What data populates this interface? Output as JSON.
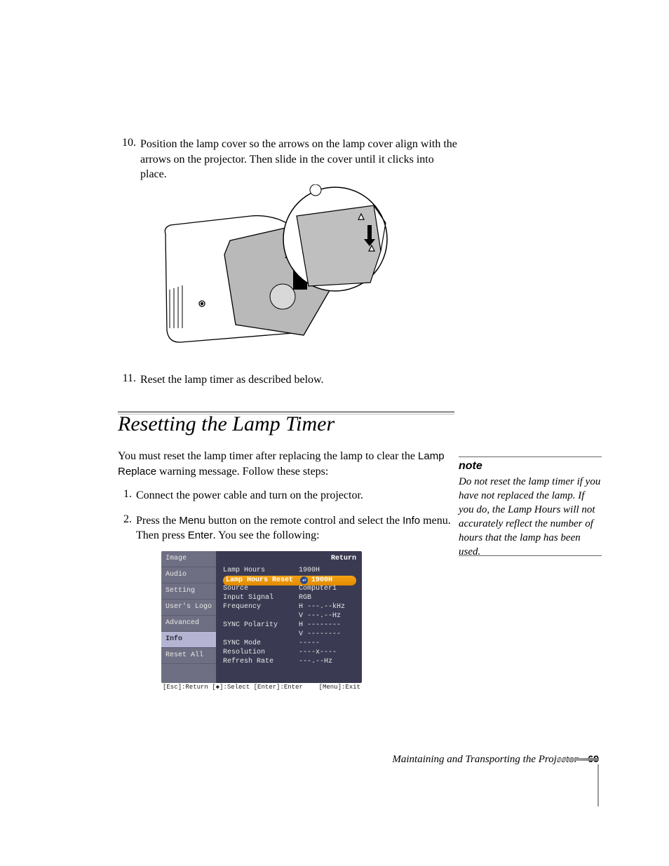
{
  "steps_first": [
    {
      "n": "10.",
      "text_before": "Position the lamp cover so the arrows on the lamp cover align with the arrows on the projector. Then slide in the cover until it clicks into place."
    }
  ],
  "step11": {
    "n": "11.",
    "text": "Reset the lamp timer as described below."
  },
  "section_title": "Resetting the Lamp Timer",
  "intro_before": "You must reset the lamp timer after replacing the lamp to clear the ",
  "intro_sans": "Lamp Replace",
  "intro_after": " warning message. Follow these steps:",
  "steps_second": [
    {
      "n": "1.",
      "plain": "Connect the power cable and turn on the projector."
    },
    {
      "n": "2.",
      "p1a": "Press the ",
      "p1b": "Menu",
      "p1c": " button on the remote control and select the ",
      "p1d": "Info",
      "p1e": " menu. Then press ",
      "p1f": "Enter",
      "p1g": ". You see the following:"
    }
  ],
  "note": {
    "head": "note",
    "body": "Do not reset the lamp timer if you have not replaced the lamp. If you do, the Lamp Hours will not accurately reflect the number of hours that the lamp has been used."
  },
  "osd": {
    "side": [
      "Image",
      "Audio",
      "Setting",
      "User's Logo",
      "Advanced",
      "Info",
      "Reset All"
    ],
    "side_selected_index": 5,
    "return_label": "Return",
    "rows": [
      {
        "k": "Lamp Hours",
        "v": "1900H"
      },
      {
        "k": "Lamp Hours Reset",
        "v": "1900H",
        "highlight": true
      },
      {
        "k": "Source",
        "v": "Computer1"
      },
      {
        "k": "Input Signal",
        "v": "RGB"
      },
      {
        "k": "Frequency",
        "v": "H ---.--kHz"
      },
      {
        "k": "",
        "v": "V ---.--Hz"
      },
      {
        "k": "SYNC Polarity",
        "v": "H --------"
      },
      {
        "k": "",
        "v": "V --------"
      },
      {
        "k": "SYNC Mode",
        "v": "-----"
      },
      {
        "k": "Resolution",
        "v": "----x----"
      },
      {
        "k": "Refresh Rate",
        "v": "---.--Hz"
      }
    ],
    "hint_left": "[Esc]:Return [◆]:Select [Enter]:Enter",
    "hint_right": "[Menu]:Exit"
  },
  "footer": {
    "chapter": "Maintaining and Transporting the Projector",
    "page": "69"
  },
  "colors": {
    "osd_bg": "#3a3a52",
    "osd_side": "#6f6f84",
    "osd_side_sel": "#b6b4d3",
    "highlight": "#f6a315"
  }
}
